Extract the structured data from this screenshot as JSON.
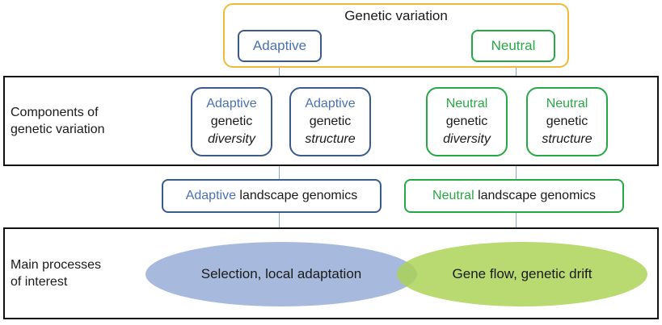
{
  "genetic_variation": {
    "title": "Genetic variation",
    "adaptive": "Adaptive",
    "neutral": "Neutral"
  },
  "components_band": {
    "label_line1": "Components of",
    "label_line2": "genetic variation",
    "boxes": [
      {
        "kind": "Adaptive",
        "word": "genetic",
        "aspect": "diversity"
      },
      {
        "kind": "Adaptive",
        "word": "genetic",
        "aspect": "structure"
      },
      {
        "kind": "Neutral",
        "word": "genetic",
        "aspect": "diversity"
      },
      {
        "kind": "Neutral",
        "word": "genetic",
        "aspect": "structure"
      }
    ]
  },
  "genomics": {
    "adaptive_kind": "Adaptive",
    "neutral_kind": "Neutral",
    "suffix": "landscape genomics"
  },
  "processes_band": {
    "label_line1": "Main processes",
    "label_line2": "of interest",
    "adaptive_process": "Selection, local adaptation",
    "neutral_process": "Gene flow, genetic drift"
  },
  "colors": {
    "adaptive": "#4a72b0",
    "adaptive_border": "#3a5b8c",
    "neutral": "#27a844",
    "top_border": "#f0b93a",
    "blue_ellipse": "#9db3d9",
    "green_ellipse": "#b5d96a"
  }
}
